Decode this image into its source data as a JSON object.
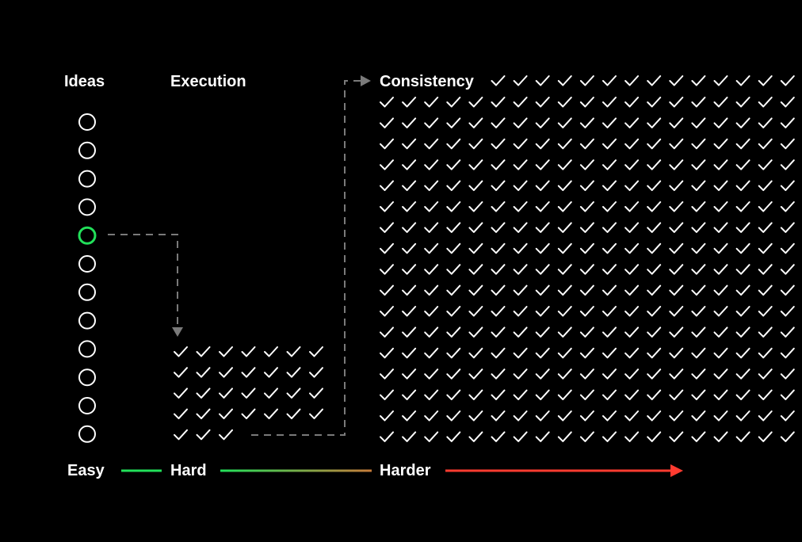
{
  "headers": {
    "ideas": "Ideas",
    "execution": "Execution",
    "consistency": "Consistency"
  },
  "scale": {
    "easy": "Easy",
    "hard": "Hard",
    "harder": "Harder"
  },
  "ideas": {
    "total": 12,
    "selected_position": 5
  },
  "execution": {
    "total_checks": 31,
    "per_row": 7
  },
  "consistency": {
    "first_row_checks": 14,
    "full_row_checks": 19,
    "full_rows": 17
  },
  "colors": {
    "background": "#000000",
    "text": "#ffffff",
    "idea_circle": "#ffffff",
    "selected_idea": "#22e05a",
    "connector": "#7a7a7a",
    "easy": "#22e05a",
    "hard_gradient_end": "#c77b3a",
    "harder": "#ff3b30"
  }
}
